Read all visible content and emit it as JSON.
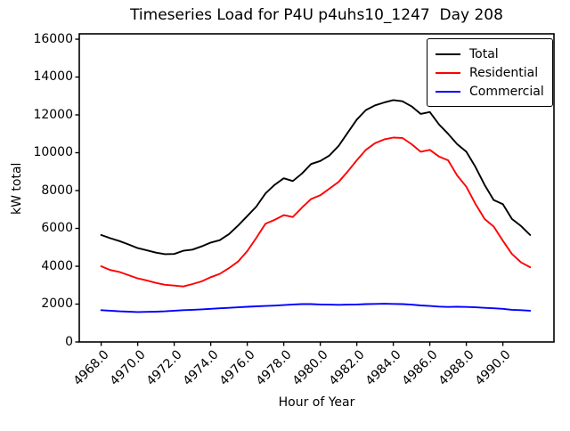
{
  "title": "Timeseries Load for P4U p4uhs10_1247  Day 208",
  "chart_data": {
    "type": "line",
    "title": "Timeseries Load for P4U p4uhs10_1247  Day 208",
    "xlabel": "Hour of Year",
    "ylabel": "kW total",
    "grid": false,
    "legend_position": "upper right",
    "xlim": [
      4966.8,
      4992.8
    ],
    "ylim": [
      0,
      16280
    ],
    "xticks": [
      4968,
      4970,
      4972,
      4974,
      4976,
      4978,
      4980,
      4982,
      4984,
      4986,
      4988,
      4990
    ],
    "xtick_labels": [
      "4968.0",
      "4970.0",
      "4972.0",
      "4974.0",
      "4976.0",
      "4978.0",
      "4980.0",
      "4982.0",
      "4984.0",
      "4986.0",
      "4988.0",
      "4990.0"
    ],
    "yticks": [
      0,
      2000,
      4000,
      6000,
      8000,
      10000,
      12000,
      14000,
      16000
    ],
    "ytick_labels": [
      "0",
      "2000",
      "4000",
      "6000",
      "8000",
      "10000",
      "12000",
      "14000",
      "16000"
    ],
    "x_start": 4968.0,
    "x_step": 0.5,
    "series": [
      {
        "name": "Total",
        "color": "#000000",
        "values": [
          5650,
          5480,
          5330,
          5150,
          4960,
          4840,
          4720,
          4640,
          4650,
          4820,
          4880,
          5050,
          5250,
          5380,
          5700,
          6150,
          6650,
          7150,
          7850,
          8300,
          8650,
          8500,
          8900,
          9400,
          9560,
          9850,
          10350,
          11050,
          11750,
          12250,
          12500,
          12650,
          12780,
          12720,
          12450,
          12050,
          12150,
          11500,
          11000,
          10450,
          10050,
          9250,
          8300,
          7500,
          7280,
          6500,
          6120,
          5650
        ]
      },
      {
        "name": "Residential",
        "color": "#ff0000",
        "values": [
          4000,
          3800,
          3700,
          3530,
          3360,
          3250,
          3120,
          3020,
          2980,
          2930,
          3060,
          3200,
          3420,
          3600,
          3900,
          4250,
          4800,
          5500,
          6250,
          6450,
          6700,
          6600,
          7100,
          7550,
          7750,
          8100,
          8450,
          9000,
          9600,
          10150,
          10500,
          10700,
          10800,
          10780,
          10450,
          10050,
          10150,
          9800,
          9600,
          8800,
          8200,
          7300,
          6500,
          6100,
          5350,
          4650,
          4200,
          3950
        ]
      },
      {
        "name": "Commercial",
        "color": "#0000ff",
        "values": [
          1680,
          1650,
          1620,
          1600,
          1580,
          1590,
          1600,
          1620,
          1650,
          1680,
          1700,
          1720,
          1750,
          1780,
          1800,
          1830,
          1860,
          1880,
          1900,
          1920,
          1950,
          1980,
          2000,
          2000,
          1980,
          1970,
          1960,
          1970,
          1980,
          2000,
          2010,
          2020,
          2010,
          2000,
          1970,
          1930,
          1900,
          1870,
          1850,
          1860,
          1850,
          1830,
          1800,
          1780,
          1750,
          1700,
          1680,
          1650
        ]
      }
    ]
  }
}
